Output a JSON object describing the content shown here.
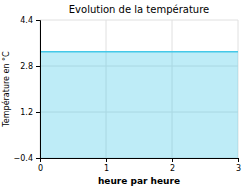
{
  "chart_data": {
    "type": "area",
    "title": "Evolution de la température",
    "xlabel": "heure par heure",
    "ylabel": "Température en °C",
    "x": [
      0,
      3
    ],
    "values": [
      3.3,
      3.3
    ],
    "color": "#44c8e8",
    "xlim": [
      0,
      3
    ],
    "ylim": [
      -0.4,
      4.4
    ],
    "xticks": [
      0,
      1,
      2,
      3
    ],
    "yticks": [
      -0.4,
      1.2,
      2.8,
      4.4
    ],
    "grid": true
  }
}
